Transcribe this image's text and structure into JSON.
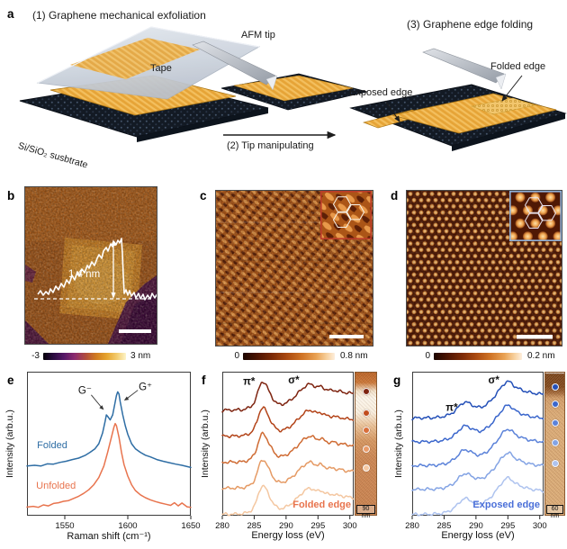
{
  "figure": {
    "panels": {
      "a": {
        "letter": "a",
        "step1_title": "(1) Graphene mechanical exfoliation",
        "step2_label": "(2) Tip manipulating",
        "step3_title": "(3) Graphene edge folding",
        "tape": "Tape",
        "afm_tip": "AFM tip",
        "substrate": "Si/SiO₂ susbtrate",
        "exposed_edge": "Exposed edge",
        "folded_edge": "Folded edge"
      },
      "b": {
        "letter": "b",
        "height_label": "1.4 nm",
        "cbar_min": "-3",
        "cbar_max": "3 nm"
      },
      "c": {
        "letter": "c",
        "cbar_min": "0",
        "cbar_max": "0.8 nm"
      },
      "d": {
        "letter": "d",
        "cbar_min": "0",
        "cbar_max": "0.2 nm"
      },
      "e": {
        "letter": "e"
      },
      "f": {
        "letter": "f"
      },
      "g": {
        "letter": "g"
      }
    }
  },
  "chart_data": [
    {
      "id": "raman-spectra",
      "panel": "e",
      "type": "line",
      "title": "",
      "xlabel": "Raman shift (cm⁻¹)",
      "ylabel": "Intensity (arb.u.)",
      "xlim": [
        1520,
        1650
      ],
      "xticks": [
        1550,
        1600,
        1650
      ],
      "grid": false,
      "legend_position": "inline",
      "series": [
        {
          "name": "Folded",
          "color": "#2e6da4",
          "points": [
            [
              1520,
              0.345
            ],
            [
              1526,
              0.35
            ],
            [
              1531,
              0.345
            ],
            [
              1536,
              0.36
            ],
            [
              1541,
              0.358
            ],
            [
              1546,
              0.37
            ],
            [
              1551,
              0.378
            ],
            [
              1556,
              0.39
            ],
            [
              1561,
              0.4
            ],
            [
              1566,
              0.418
            ],
            [
              1570,
              0.44
            ],
            [
              1574,
              0.465
            ],
            [
              1577,
              0.5
            ],
            [
              1580,
              0.575
            ],
            [
              1582,
              0.655
            ],
            [
              1583,
              0.7
            ],
            [
              1584,
              0.69
            ],
            [
              1586,
              0.665
            ],
            [
              1588,
              0.7
            ],
            [
              1590,
              0.79
            ],
            [
              1591,
              0.835
            ],
            [
              1592,
              0.86
            ],
            [
              1593,
              0.845
            ],
            [
              1594,
              0.79
            ],
            [
              1596,
              0.7
            ],
            [
              1598,
              0.625
            ],
            [
              1600,
              0.565
            ],
            [
              1603,
              0.5
            ],
            [
              1606,
              0.465
            ],
            [
              1610,
              0.44
            ],
            [
              1614,
              0.42
            ],
            [
              1618,
              0.408
            ],
            [
              1623,
              0.39
            ],
            [
              1628,
              0.378
            ],
            [
              1633,
              0.368
            ],
            [
              1638,
              0.358
            ],
            [
              1643,
              0.35
            ],
            [
              1650,
              0.335
            ]
          ]
        },
        {
          "name": "Unfolded",
          "color": "#e8744e",
          "points": [
            [
              1520,
              0.06
            ],
            [
              1525,
              0.065
            ],
            [
              1529,
              0.058
            ],
            [
              1533,
              0.075
            ],
            [
              1537,
              0.068
            ],
            [
              1541,
              0.085
            ],
            [
              1545,
              0.09
            ],
            [
              1549,
              0.1
            ],
            [
              1553,
              0.105
            ],
            [
              1557,
              0.12
            ],
            [
              1561,
              0.135
            ],
            [
              1565,
              0.155
            ],
            [
              1569,
              0.18
            ],
            [
              1573,
              0.215
            ],
            [
              1577,
              0.265
            ],
            [
              1581,
              0.345
            ],
            [
              1584,
              0.44
            ],
            [
              1587,
              0.545
            ],
            [
              1589,
              0.615
            ],
            [
              1590,
              0.64
            ],
            [
              1591,
              0.625
            ],
            [
              1593,
              0.545
            ],
            [
              1595,
              0.44
            ],
            [
              1597,
              0.355
            ],
            [
              1600,
              0.275
            ],
            [
              1603,
              0.215
            ],
            [
              1606,
              0.175
            ],
            [
              1610,
              0.145
            ],
            [
              1614,
              0.125
            ],
            [
              1618,
              0.11
            ],
            [
              1622,
              0.098
            ],
            [
              1626,
              0.088
            ],
            [
              1630,
              0.08
            ],
            [
              1634,
              0.072
            ],
            [
              1637,
              0.09
            ],
            [
              1640,
              0.068
            ],
            [
              1643,
              0.088
            ],
            [
              1647,
              0.062
            ],
            [
              1650,
              0.058
            ]
          ]
        }
      ],
      "annotations": [
        {
          "text": "G⁻",
          "x": 1566,
          "y": 0.87,
          "arrow_to": {
            "x": 1581,
            "y": 0.735
          }
        },
        {
          "text": "G⁺",
          "x": 1614,
          "y": 0.895,
          "arrow_to": {
            "x": 1597,
            "y": 0.8
          }
        },
        {
          "text": "Folded",
          "x": 1540,
          "y": 0.49,
          "color": "#2e6da4"
        },
        {
          "text": "Unfolded",
          "x": 1543,
          "y": 0.21,
          "color": "#e8744e"
        }
      ]
    },
    {
      "id": "eels-folded-edge",
      "panel": "f",
      "type": "line",
      "xlabel": "Energy loss (eV)",
      "ylabel": "Intensity (arb.u.)",
      "xlim": [
        280,
        300.6
      ],
      "xticks": [
        280,
        285,
        290,
        295,
        300
      ],
      "edge_label": "Folded edge",
      "edge_label_color": "#e8744e",
      "curve_colors": [
        "#7e2410",
        "#b34419",
        "#cf6b33",
        "#e59a64",
        "#f4c7a1"
      ],
      "offsets": [
        1.72,
        1.29,
        0.86,
        0.43,
        0
      ],
      "ymax": 2.38,
      "profile": [
        [
          280,
          0.02
        ],
        [
          280.5,
          0.028
        ],
        [
          281,
          0.022
        ],
        [
          281.5,
          0.03
        ],
        [
          282,
          0.024
        ],
        [
          282.5,
          0.032
        ],
        [
          283,
          0.03
        ],
        [
          283.5,
          0.04
        ],
        [
          284,
          0.055
        ],
        [
          284.5,
          0.085
        ],
        [
          285,
          0.15
        ],
        [
          285.4,
          0.26
        ],
        [
          285.8,
          0.4
        ],
        [
          286.1,
          0.48
        ],
        [
          286.4,
          0.5
        ],
        [
          286.7,
          0.47
        ],
        [
          287,
          0.41
        ],
        [
          287.4,
          0.32
        ],
        [
          287.8,
          0.24
        ],
        [
          288.2,
          0.175
        ],
        [
          288.6,
          0.135
        ],
        [
          289,
          0.12
        ],
        [
          289.5,
          0.125
        ],
        [
          290,
          0.145
        ],
        [
          290.5,
          0.175
        ],
        [
          291,
          0.215
        ],
        [
          291.5,
          0.265
        ],
        [
          292,
          0.32
        ],
        [
          292.5,
          0.375
        ],
        [
          293,
          0.42
        ],
        [
          293.4,
          0.445
        ],
        [
          293.8,
          0.455
        ],
        [
          294.2,
          0.44
        ],
        [
          294.6,
          0.415
        ],
        [
          295,
          0.405
        ],
        [
          295.4,
          0.42
        ],
        [
          295.8,
          0.4
        ],
        [
          296.2,
          0.37
        ],
        [
          296.6,
          0.355
        ],
        [
          297,
          0.35
        ],
        [
          297.4,
          0.36
        ],
        [
          297.8,
          0.345
        ],
        [
          298.2,
          0.33
        ],
        [
          298.6,
          0.335
        ],
        [
          299,
          0.32
        ],
        [
          299.4,
          0.312
        ],
        [
          299.8,
          0.308
        ],
        [
          300.6,
          0.3
        ]
      ],
      "annotations": [
        {
          "text": "π*",
          "x": 284.2,
          "y": 0.93
        },
        {
          "text": "σ*",
          "x": 291.2,
          "y": 0.94
        }
      ],
      "inset_map": {
        "scalebar": "90 nm",
        "dot_fractions": [
          0.13,
          0.28,
          0.4,
          0.53,
          0.66
        ],
        "dot_colors": [
          "#7e2410",
          "#c14d1e",
          "#d96f3a",
          "#e99a68",
          "#f6c9a4"
        ]
      }
    },
    {
      "id": "eels-exposed-edge",
      "panel": "g",
      "type": "line",
      "xlabel": "Energy loss (eV)",
      "ylabel": "Intensity (arb.u.)",
      "xlim": [
        280,
        300.6
      ],
      "xticks": [
        280,
        285,
        290,
        295,
        300
      ],
      "edge_label": "Exposed edge",
      "edge_label_color": "#4a6fd8",
      "curve_colors": [
        "#2450b8",
        "#3a66cc",
        "#5b82d9",
        "#83a3e4",
        "#aec3ef"
      ],
      "offsets": [
        1.62,
        1.22,
        0.82,
        0.42,
        0
      ],
      "ymax": 2.42,
      "profile": [
        [
          280,
          0.018
        ],
        [
          280.5,
          0.024
        ],
        [
          281,
          0.02
        ],
        [
          281.5,
          0.026
        ],
        [
          282,
          0.022
        ],
        [
          282.5,
          0.028
        ],
        [
          283,
          0.024
        ],
        [
          283.5,
          0.03
        ],
        [
          284,
          0.032
        ],
        [
          284.5,
          0.04
        ],
        [
          285,
          0.05
        ],
        [
          285.5,
          0.065
        ],
        [
          286,
          0.09
        ],
        [
          286.5,
          0.125
        ],
        [
          287,
          0.175
        ],
        [
          287.4,
          0.225
        ],
        [
          287.8,
          0.265
        ],
        [
          288.2,
          0.29
        ],
        [
          288.6,
          0.285
        ],
        [
          289,
          0.265
        ],
        [
          289.5,
          0.235
        ],
        [
          290,
          0.21
        ],
        [
          290.5,
          0.2
        ],
        [
          291,
          0.21
        ],
        [
          291.5,
          0.24
        ],
        [
          292,
          0.28
        ],
        [
          292.5,
          0.335
        ],
        [
          293,
          0.4
        ],
        [
          293.5,
          0.47
        ],
        [
          294,
          0.545
        ],
        [
          294.4,
          0.595
        ],
        [
          294.8,
          0.63
        ],
        [
          295.2,
          0.635
        ],
        [
          295.6,
          0.605
        ],
        [
          296,
          0.56
        ],
        [
          296.5,
          0.525
        ],
        [
          297,
          0.5
        ],
        [
          297.5,
          0.48
        ],
        [
          298,
          0.462
        ],
        [
          298.5,
          0.45
        ],
        [
          299,
          0.44
        ],
        [
          299.5,
          0.432
        ],
        [
          300.6,
          0.42
        ]
      ],
      "annotations": [
        {
          "text": "π*",
          "x": 286.2,
          "y": 0.75
        },
        {
          "text": "σ*",
          "x": 292.8,
          "y": 0.94
        }
      ],
      "inset_map": {
        "scalebar": "60 nm",
        "dot_fractions": [
          0.1,
          0.22,
          0.35,
          0.49,
          0.63
        ],
        "dot_colors": [
          "#2450b8",
          "#3a66cc",
          "#5b82d9",
          "#83a3e4",
          "#aec3ef"
        ]
      }
    }
  ]
}
